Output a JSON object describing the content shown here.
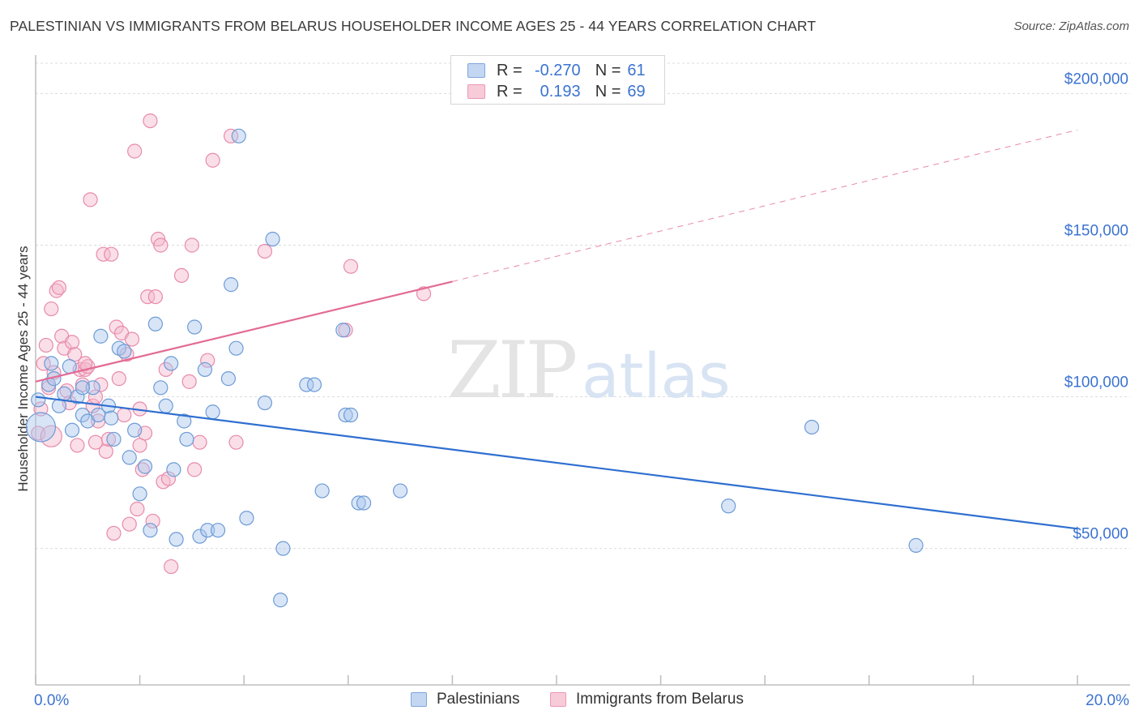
{
  "title": "PALESTINIAN VS IMMIGRANTS FROM BELARUS HOUSEHOLDER INCOME AGES 25 - 44 YEARS CORRELATION CHART",
  "source": "Source: ZipAtlas.com",
  "watermark": {
    "zip": "ZIP",
    "atlas": "atlas"
  },
  "legend_top": {
    "rows": [
      {
        "r_label": "R =",
        "r_value": "-0.270",
        "n_label": "N =",
        "n_value": "61"
      },
      {
        "r_label": "R =",
        "r_value": "0.193",
        "n_label": "N =",
        "n_value": "69"
      }
    ]
  },
  "colors": {
    "blue_fill": "#a9c6ee",
    "blue_stroke": "#6d9bd6",
    "blue_line": "#2f6fd0",
    "pink_fill": "#f5b7cb",
    "pink_stroke": "#e88aab",
    "pink_line": "#e36b95",
    "axis_text": "#3b73d1",
    "grid": "#dcdcdc"
  },
  "chart_data": {
    "type": "scatter",
    "title": "PALESTINIAN VS IMMIGRANTS FROM BELARUS HOUSEHOLDER INCOME AGES 25 - 44 YEARS CORRELATION CHART",
    "ylabel": "Householder Income Ages 25 - 44 years",
    "xlabel": "",
    "x_tick_labels": [
      "0.0%",
      "20.0%"
    ],
    "y_tick_labels": [
      "$50,000",
      "$100,000",
      "$150,000",
      "$200,000"
    ],
    "y_ticks": [
      50000,
      100000,
      150000,
      200000
    ],
    "xlim": [
      0,
      20
    ],
    "ylim": [
      5000,
      210000
    ],
    "grid": true,
    "legend_position": "bottom",
    "series": [
      {
        "name": "Palestinians",
        "color": "#6d9bd6",
        "r": -0.27,
        "n": 61,
        "trend": {
          "x": [
            0,
            20
          ],
          "y": [
            100000,
            56500
          ],
          "dashed_extension": false
        },
        "points": [
          [
            0.05,
            99000
          ],
          [
            0.1,
            90000
          ],
          [
            0.25,
            104000
          ],
          [
            0.3,
            111000
          ],
          [
            0.35,
            106000
          ],
          [
            0.45,
            97000
          ],
          [
            0.55,
            101000
          ],
          [
            0.65,
            110000
          ],
          [
            0.7,
            89000
          ],
          [
            0.8,
            100000
          ],
          [
            0.9,
            94000
          ],
          [
            1.0,
            92000
          ],
          [
            1.1,
            103000
          ],
          [
            1.2,
            94000
          ],
          [
            1.25,
            120000
          ],
          [
            1.4,
            97000
          ],
          [
            1.45,
            93000
          ],
          [
            1.5,
            86000
          ],
          [
            1.6,
            116000
          ],
          [
            1.7,
            115000
          ],
          [
            1.8,
            80000
          ],
          [
            1.9,
            89000
          ],
          [
            2.0,
            68000
          ],
          [
            2.1,
            77000
          ],
          [
            2.2,
            56000
          ],
          [
            2.3,
            124000
          ],
          [
            2.4,
            103000
          ],
          [
            2.5,
            97000
          ],
          [
            2.6,
            111000
          ],
          [
            2.65,
            76000
          ],
          [
            2.7,
            53000
          ],
          [
            2.85,
            92000
          ],
          [
            2.9,
            86000
          ],
          [
            3.05,
            123000
          ],
          [
            3.15,
            54000
          ],
          [
            3.25,
            109000
          ],
          [
            3.3,
            56000
          ],
          [
            3.4,
            95000
          ],
          [
            3.5,
            56000
          ],
          [
            3.7,
            106000
          ],
          [
            3.75,
            137000
          ],
          [
            3.85,
            116000
          ],
          [
            3.9,
            186000
          ],
          [
            4.05,
            60000
          ],
          [
            4.4,
            98000
          ],
          [
            4.55,
            152000
          ],
          [
            4.7,
            33000
          ],
          [
            4.75,
            50000
          ],
          [
            5.2,
            104000
          ],
          [
            5.35,
            104000
          ],
          [
            5.5,
            69000
          ],
          [
            5.9,
            122000
          ],
          [
            5.95,
            94000
          ],
          [
            6.05,
            94000
          ],
          [
            6.2,
            65000
          ],
          [
            6.3,
            65000
          ],
          [
            7.0,
            69000
          ],
          [
            13.3,
            64000
          ],
          [
            14.9,
            90000
          ],
          [
            16.9,
            51000
          ],
          [
            0.9,
            103000
          ]
        ]
      },
      {
        "name": "Immigrants from Belarus",
        "color": "#e88aab",
        "r": 0.193,
        "n": 69,
        "trend": {
          "x": [
            0,
            8.0
          ],
          "y": [
            105000,
            138000
          ],
          "dashed_extension": {
            "x": [
              8.0,
              20
            ],
            "y": [
              138000,
              188000
            ]
          }
        },
        "points": [
          [
            0.05,
            88000
          ],
          [
            0.1,
            96000
          ],
          [
            0.15,
            111000
          ],
          [
            0.2,
            117000
          ],
          [
            0.25,
            103000
          ],
          [
            0.3,
            129000
          ],
          [
            0.35,
            108000
          ],
          [
            0.4,
            135000
          ],
          [
            0.45,
            136000
          ],
          [
            0.5,
            120000
          ],
          [
            0.55,
            116000
          ],
          [
            0.6,
            102000
          ],
          [
            0.65,
            98000
          ],
          [
            0.7,
            118000
          ],
          [
            0.75,
            114000
          ],
          [
            0.8,
            84000
          ],
          [
            0.85,
            109000
          ],
          [
            0.9,
            104000
          ],
          [
            0.95,
            109000
          ],
          [
            1.0,
            110000
          ],
          [
            1.05,
            165000
          ],
          [
            1.1,
            97000
          ],
          [
            1.15,
            85000
          ],
          [
            1.2,
            92000
          ],
          [
            1.25,
            104000
          ],
          [
            1.3,
            147000
          ],
          [
            1.35,
            82000
          ],
          [
            1.4,
            86000
          ],
          [
            1.45,
            147000
          ],
          [
            1.5,
            55000
          ],
          [
            1.55,
            123000
          ],
          [
            1.6,
            106000
          ],
          [
            1.65,
            121000
          ],
          [
            1.7,
            94000
          ],
          [
            1.75,
            114000
          ],
          [
            1.8,
            58000
          ],
          [
            1.85,
            119000
          ],
          [
            1.9,
            181000
          ],
          [
            1.95,
            63000
          ],
          [
            2.0,
            84000
          ],
          [
            2.05,
            76000
          ],
          [
            2.1,
            88000
          ],
          [
            2.15,
            133000
          ],
          [
            2.2,
            191000
          ],
          [
            2.25,
            59000
          ],
          [
            2.3,
            133000
          ],
          [
            2.35,
            152000
          ],
          [
            2.4,
            150000
          ],
          [
            2.45,
            72000
          ],
          [
            2.5,
            109000
          ],
          [
            2.55,
            73000
          ],
          [
            2.6,
            44000
          ],
          [
            2.8,
            140000
          ],
          [
            2.95,
            105000
          ],
          [
            3.0,
            150000
          ],
          [
            3.05,
            76000
          ],
          [
            3.15,
            85000
          ],
          [
            3.3,
            112000
          ],
          [
            3.4,
            178000
          ],
          [
            3.75,
            186000
          ],
          [
            3.85,
            85000
          ],
          [
            4.4,
            148000
          ],
          [
            5.95,
            122000
          ],
          [
            6.05,
            143000
          ],
          [
            7.45,
            134000
          ],
          [
            0.95,
            111000
          ],
          [
            1.15,
            100000
          ],
          [
            2.0,
            96000
          ],
          [
            0.3,
            87000
          ]
        ]
      }
    ]
  },
  "bottom_legend": {
    "items": [
      "Palestinians",
      "Immigrants from Belarus"
    ]
  }
}
